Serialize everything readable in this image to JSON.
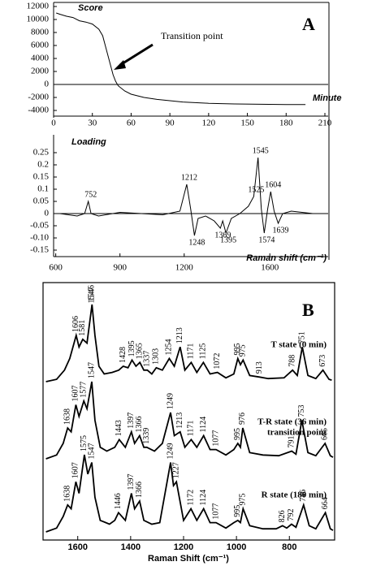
{
  "chart_data": [
    {
      "type": "line",
      "panel_label": "A",
      "ylabel": "Score",
      "xlabel": "Minute",
      "annotation": "Transition point",
      "color": "#000000",
      "x": [
        2,
        5,
        10,
        15,
        20,
        25,
        30,
        35,
        38,
        40,
        42,
        44,
        46,
        48,
        50,
        55,
        60,
        70,
        80,
        90,
        100,
        120,
        140,
        160,
        180,
        195
      ],
      "values": [
        11000,
        10800,
        10500,
        10300,
        9800,
        9600,
        9300,
        8500,
        7500,
        6000,
        4500,
        3000,
        1500,
        500,
        -200,
        -1000,
        -1500,
        -2000,
        -2300,
        -2500,
        -2700,
        -2900,
        -3000,
        -3050,
        -3100,
        -3100
      ],
      "xlim": [
        0,
        210
      ],
      "xticks": [
        0,
        30,
        60,
        90,
        120,
        150,
        180,
        210
      ],
      "ylim": [
        -4000,
        12000
      ],
      "yticks": [
        12000,
        10000,
        8000,
        6000,
        4000,
        2000,
        0,
        -2000,
        -4000
      ]
    },
    {
      "type": "line",
      "ylabel": "Loading",
      "xlabel": "Raman shift (cm⁻¹)",
      "color": "#000000",
      "x": [
        620,
        700,
        735,
        752,
        765,
        800,
        900,
        1000,
        1100,
        1180,
        1212,
        1230,
        1248,
        1265,
        1300,
        1340,
        1369,
        1380,
        1395,
        1420,
        1460,
        1500,
        1525,
        1545,
        1560,
        1574,
        1590,
        1604,
        1620,
        1639,
        1660,
        1700,
        1800
      ],
      "values": [
        0,
        -0.01,
        0,
        0.05,
        0,
        -0.01,
        0.005,
        0,
        -0.005,
        0.01,
        0.12,
        0.02,
        -0.09,
        -0.02,
        -0.01,
        -0.03,
        -0.06,
        -0.03,
        -0.08,
        -0.02,
        0,
        0.03,
        0.07,
        0.23,
        0.02,
        -0.08,
        0.02,
        0.09,
        0.01,
        -0.04,
        0,
        0.01,
        0
      ],
      "peaks": [
        752,
        1212,
        1248,
        1369,
        1395,
        1525,
        1545,
        1574,
        1604,
        1639
      ],
      "xlim": [
        590,
        1880
      ],
      "xticks": [
        600,
        900,
        1200,
        1600
      ],
      "ylim": [
        -0.15,
        0.25
      ],
      "yticks": [
        0.25,
        0.2,
        0.15,
        0.1,
        0.05,
        0,
        -0.05,
        {
          "value": -0.1,
          "label": "-0.10"
        },
        -0.15
      ]
    },
    {
      "type": "spectra",
      "panel_label": "B",
      "xlabel": "Raman Shift (cm⁻¹)",
      "xlim": [
        1725,
        635
      ],
      "xticks": [
        1600,
        1400,
        1200,
        1000,
        800
      ],
      "ylim": [
        0,
        100
      ],
      "series": [
        {
          "name": "T state (0 min)",
          "color": "#000000",
          "x": [
            1720,
            1680,
            1650,
            1630,
            1606,
            1595,
            1581,
            1565,
            1546,
            1535,
            1520,
            1500,
            1470,
            1445,
            1428,
            1410,
            1395,
            1380,
            1365,
            1350,
            1337,
            1320,
            1303,
            1280,
            1254,
            1235,
            1213,
            1195,
            1171,
            1150,
            1125,
            1100,
            1072,
            1040,
            1010,
            995,
            985,
            975,
            950,
            913,
            880,
            820,
            788,
            770,
            751,
            730,
            700,
            673,
            650,
            640
          ],
          "values": [
            0,
            3,
            15,
            30,
            60,
            45,
            55,
            50,
            100,
            60,
            20,
            10,
            12,
            15,
            20,
            18,
            28,
            20,
            25,
            15,
            15,
            10,
            18,
            15,
            30,
            20,
            45,
            15,
            25,
            12,
            25,
            10,
            12,
            5,
            10,
            30,
            22,
            28,
            8,
            6,
            4,
            5,
            15,
            8,
            45,
            8,
            4,
            15,
            3,
            2
          ],
          "peaks": [
            1606,
            1581,
            1546,
            1547,
            1428,
            1395,
            1365,
            1337,
            1303,
            1254,
            1213,
            1171,
            1125,
            1072,
            995,
            975,
            913,
            788,
            751,
            673
          ]
        },
        {
          "name": "T-R state (36 min)",
          "sublabel": "transition point",
          "color": "#000000",
          "x": [
            1720,
            1680,
            1655,
            1638,
            1625,
            1607,
            1595,
            1577,
            1565,
            1547,
            1535,
            1515,
            1490,
            1460,
            1443,
            1420,
            1397,
            1385,
            1366,
            1350,
            1339,
            1310,
            1280,
            1249,
            1235,
            1213,
            1195,
            1171,
            1150,
            1124,
            1100,
            1077,
            1040,
            1010,
            995,
            985,
            976,
            950,
            900,
            840,
            791,
            775,
            753,
            730,
            700,
            665,
            645,
            635
          ],
          "values": [
            0,
            5,
            20,
            40,
            35,
            70,
            55,
            75,
            65,
            100,
            50,
            15,
            10,
            15,
            25,
            15,
            35,
            20,
            30,
            15,
            15,
            10,
            20,
            60,
            30,
            35,
            15,
            25,
            15,
            30,
            12,
            12,
            5,
            12,
            20,
            15,
            40,
            8,
            5,
            4,
            10,
            6,
            50,
            8,
            4,
            20,
            4,
            2
          ],
          "peaks": [
            1638,
            1607,
            1577,
            1547,
            1443,
            1397,
            1366,
            1339,
            1249,
            1213,
            1171,
            1124,
            1077,
            995,
            976,
            791,
            753,
            665
          ]
        },
        {
          "name": "R state (180 min)",
          "color": "#000000",
          "x": [
            1720,
            1680,
            1655,
            1638,
            1625,
            1607,
            1595,
            1575,
            1562,
            1547,
            1535,
            1515,
            1480,
            1460,
            1446,
            1420,
            1397,
            1385,
            1366,
            1350,
            1320,
            1290,
            1249,
            1238,
            1227,
            1200,
            1172,
            1150,
            1124,
            1100,
            1077,
            1040,
            1010,
            995,
            985,
            975,
            950,
            900,
            850,
            826,
            810,
            792,
            775,
            746,
            725,
            700,
            664,
            645,
            635
          ],
          "values": [
            0,
            5,
            20,
            35,
            30,
            65,
            50,
            100,
            75,
            90,
            45,
            15,
            10,
            15,
            25,
            15,
            50,
            30,
            40,
            15,
            10,
            12,
            90,
            60,
            65,
            15,
            30,
            15,
            30,
            12,
            12,
            5,
            12,
            15,
            12,
            30,
            8,
            4,
            4,
            8,
            5,
            10,
            6,
            35,
            8,
            4,
            25,
            4,
            2
          ],
          "peaks": [
            1638,
            1607,
            1575,
            1547,
            1446,
            1397,
            1366,
            1249,
            1227,
            1172,
            1124,
            1077,
            995,
            975,
            826,
            792,
            746,
            664
          ]
        }
      ]
    }
  ]
}
